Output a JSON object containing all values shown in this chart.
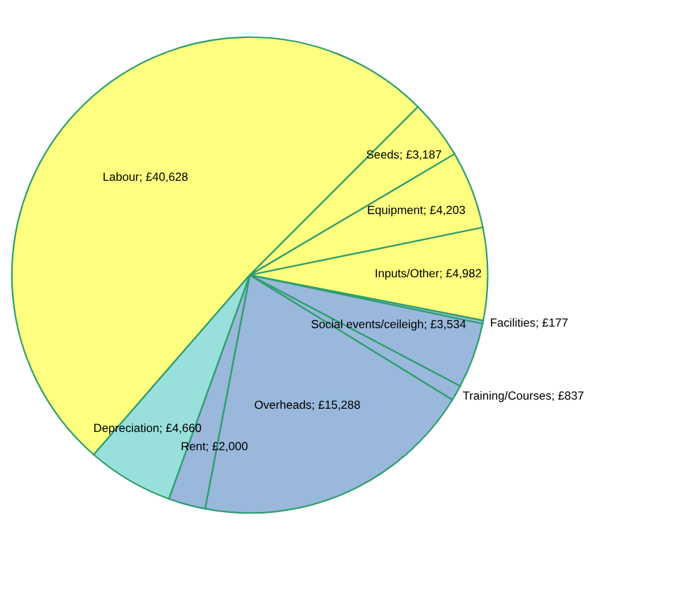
{
  "chart_data": {
    "type": "pie",
    "categories": [
      "Labour",
      "Seeds",
      "Equipment",
      "Inputs/Other",
      "Facilities",
      "Social events/ceileigh",
      "Training/Courses",
      "Overheads",
      "Rent",
      "Depreciation"
    ],
    "values": [
      40628,
      3187,
      4203,
      4982,
      177,
      3534,
      837,
      15288,
      2000,
      4660
    ],
    "value_labels": [
      "£40,628",
      "£3,187",
      "£4,203",
      "£4,982",
      "£177",
      "£3,534",
      "£837",
      "£15,288",
      "£2,000",
      "£4,660"
    ],
    "colors": [
      "#ffff80",
      "#ffff80",
      "#ffff80",
      "#ffff80",
      "#99b8dc",
      "#99b8dc",
      "#99b8dc",
      "#99b8dc",
      "#99b8dc",
      "#99e0dc"
    ],
    "legend": false
  }
}
